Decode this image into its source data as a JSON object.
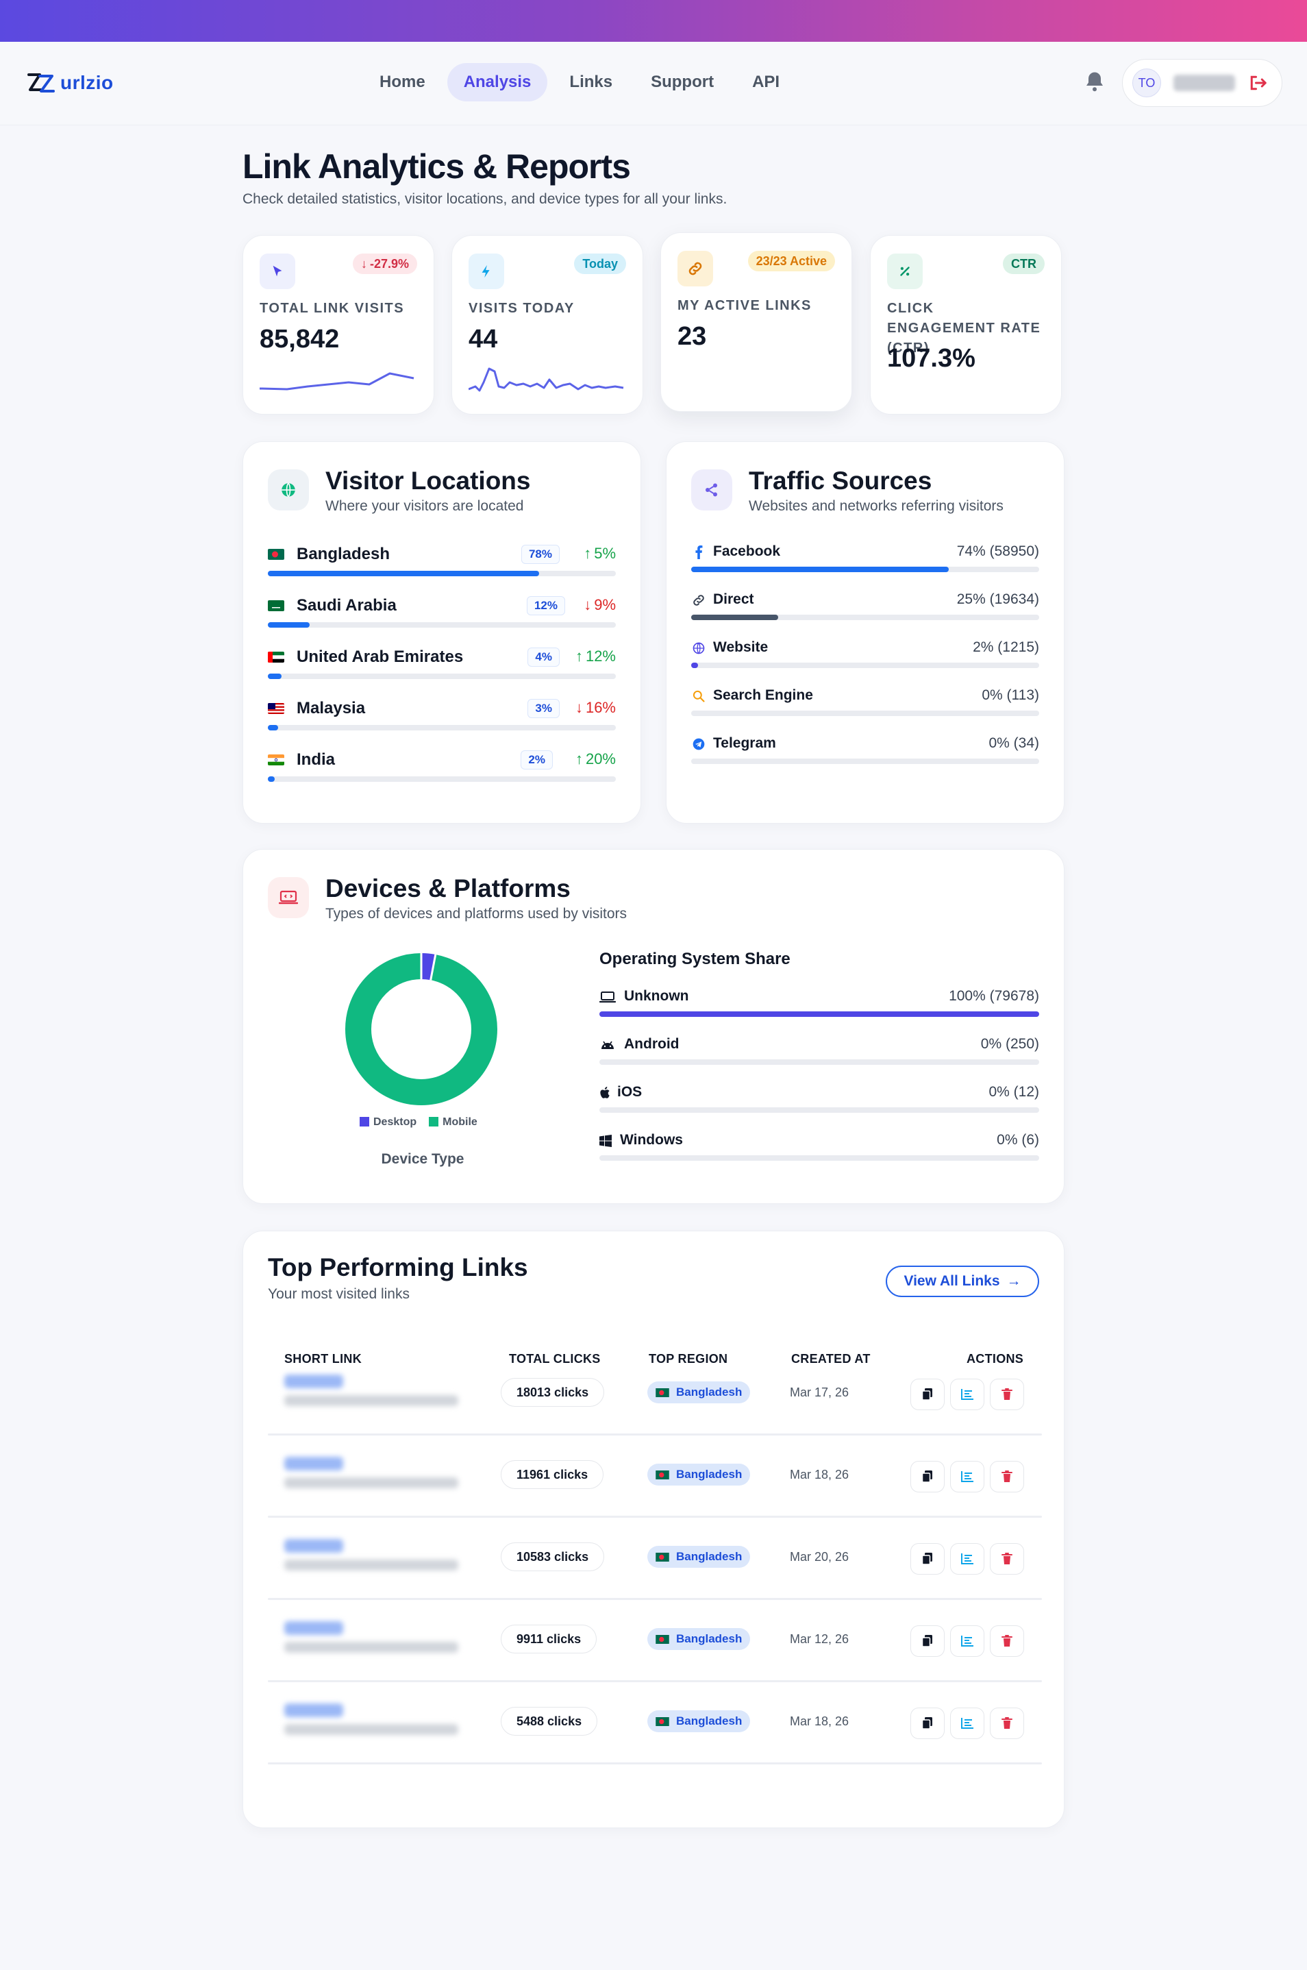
{
  "brand": {
    "name": "urlzio"
  },
  "nav": {
    "items": [
      {
        "label": "Home",
        "active": false
      },
      {
        "label": "Analysis",
        "active": true
      },
      {
        "label": "Links",
        "active": false
      },
      {
        "label": "Support",
        "active": false
      },
      {
        "label": "API",
        "active": false
      }
    ],
    "user_initials": "TO"
  },
  "header": {
    "title": "Link Analytics & Reports",
    "subtitle": "Check detailed statistics, visitor locations, and device types for all your links."
  },
  "stats": [
    {
      "label": "TOTAL LINK VISITS",
      "value": "85,842",
      "badge": "-27.9%",
      "icon": "cursor-icon"
    },
    {
      "label": "VISITS TODAY",
      "value": "44",
      "badge": "Today",
      "icon": "bolt-icon"
    },
    {
      "label": "MY ACTIVE LINKS",
      "value": "23",
      "badge": "23/23 Active",
      "icon": "link-icon"
    },
    {
      "label": "CLICK ENGAGEMENT RATE (CTR)",
      "value": "107.3%",
      "badge": "CTR",
      "icon": "percent-icon"
    }
  ],
  "locations": {
    "title": "Visitor Locations",
    "subtitle": "Where your visitors are located",
    "items": [
      {
        "country": "Bangladesh",
        "percent": "78%",
        "share": 0.78,
        "change": "5%",
        "direction": "up"
      },
      {
        "country": "Saudi Arabia",
        "percent": "12%",
        "share": 0.12,
        "change": "9%",
        "direction": "down"
      },
      {
        "country": "United Arab Emirates",
        "percent": "4%",
        "share": 0.04,
        "change": "12%",
        "direction": "up"
      },
      {
        "country": "Malaysia",
        "percent": "3%",
        "share": 0.03,
        "change": "16%",
        "direction": "down"
      },
      {
        "country": "India",
        "percent": "2%",
        "share": 0.02,
        "change": "20%",
        "direction": "up"
      }
    ]
  },
  "sources": {
    "title": "Traffic Sources",
    "subtitle": "Websites and networks referring visitors",
    "items": [
      {
        "name": "Facebook",
        "value": "74% (58950)",
        "share": 0.74,
        "icon": "facebook-icon",
        "color": "#1d6ff2"
      },
      {
        "name": "Direct",
        "value": "25% (19634)",
        "share": 0.25,
        "icon": "link-icon",
        "color": "#475569"
      },
      {
        "name": "Website",
        "value": "2% (1215)",
        "share": 0.02,
        "icon": "globe-icon",
        "color": "#4f46e5"
      },
      {
        "name": "Search Engine",
        "value": "0% (113)",
        "share": 0.0,
        "icon": "search-icon",
        "color": "#f59e0b"
      },
      {
        "name": "Telegram",
        "value": "0% (34)",
        "share": 0.0,
        "icon": "telegram-icon",
        "color": "#1d6ff2"
      }
    ]
  },
  "devices": {
    "title": "Devices & Platforms",
    "subtitle": "Types of devices and platforms used by visitors",
    "caption": "Device Type",
    "legend": [
      {
        "name": "Desktop",
        "color": "#4f46e5"
      },
      {
        "name": "Mobile",
        "color": "#10b981"
      }
    ],
    "os_title": "Operating System Share",
    "os": [
      {
        "name": "Unknown",
        "value": "100% (79678)",
        "share": 1.0,
        "icon": "laptop-icon"
      },
      {
        "name": "Android",
        "value": "0% (250)",
        "share": 0.0,
        "icon": "android-icon"
      },
      {
        "name": "iOS",
        "value": "0% (12)",
        "share": 0.0,
        "icon": "apple-icon"
      },
      {
        "name": "Windows",
        "value": "0% (6)",
        "share": 0.0,
        "icon": "windows-icon"
      }
    ]
  },
  "chart_data": {
    "type": "pie",
    "categories": [
      "Desktop",
      "Mobile"
    ],
    "values": [
      3,
      97
    ],
    "title": "",
    "xlabel": "Device Type",
    "ylabel": ""
  },
  "top_links": {
    "title": "Top Performing Links",
    "subtitle": "Your most visited links",
    "view_all": "View All Links",
    "columns": [
      "SHORT LINK",
      "TOTAL CLICKS",
      "TOP REGION",
      "CREATED AT",
      "ACTIONS"
    ],
    "rows": [
      {
        "clicks": "18013 clicks",
        "region": "Bangladesh",
        "created": "Mar 17, 26"
      },
      {
        "clicks": "11961 clicks",
        "region": "Bangladesh",
        "created": "Mar 18, 26"
      },
      {
        "clicks": "10583 clicks",
        "region": "Bangladesh",
        "created": "Mar 20, 26"
      },
      {
        "clicks": "9911 clicks",
        "region": "Bangladesh",
        "created": "Mar 12, 26"
      },
      {
        "clicks": "5488 clicks",
        "region": "Bangladesh",
        "created": "Mar 18, 26"
      }
    ]
  }
}
